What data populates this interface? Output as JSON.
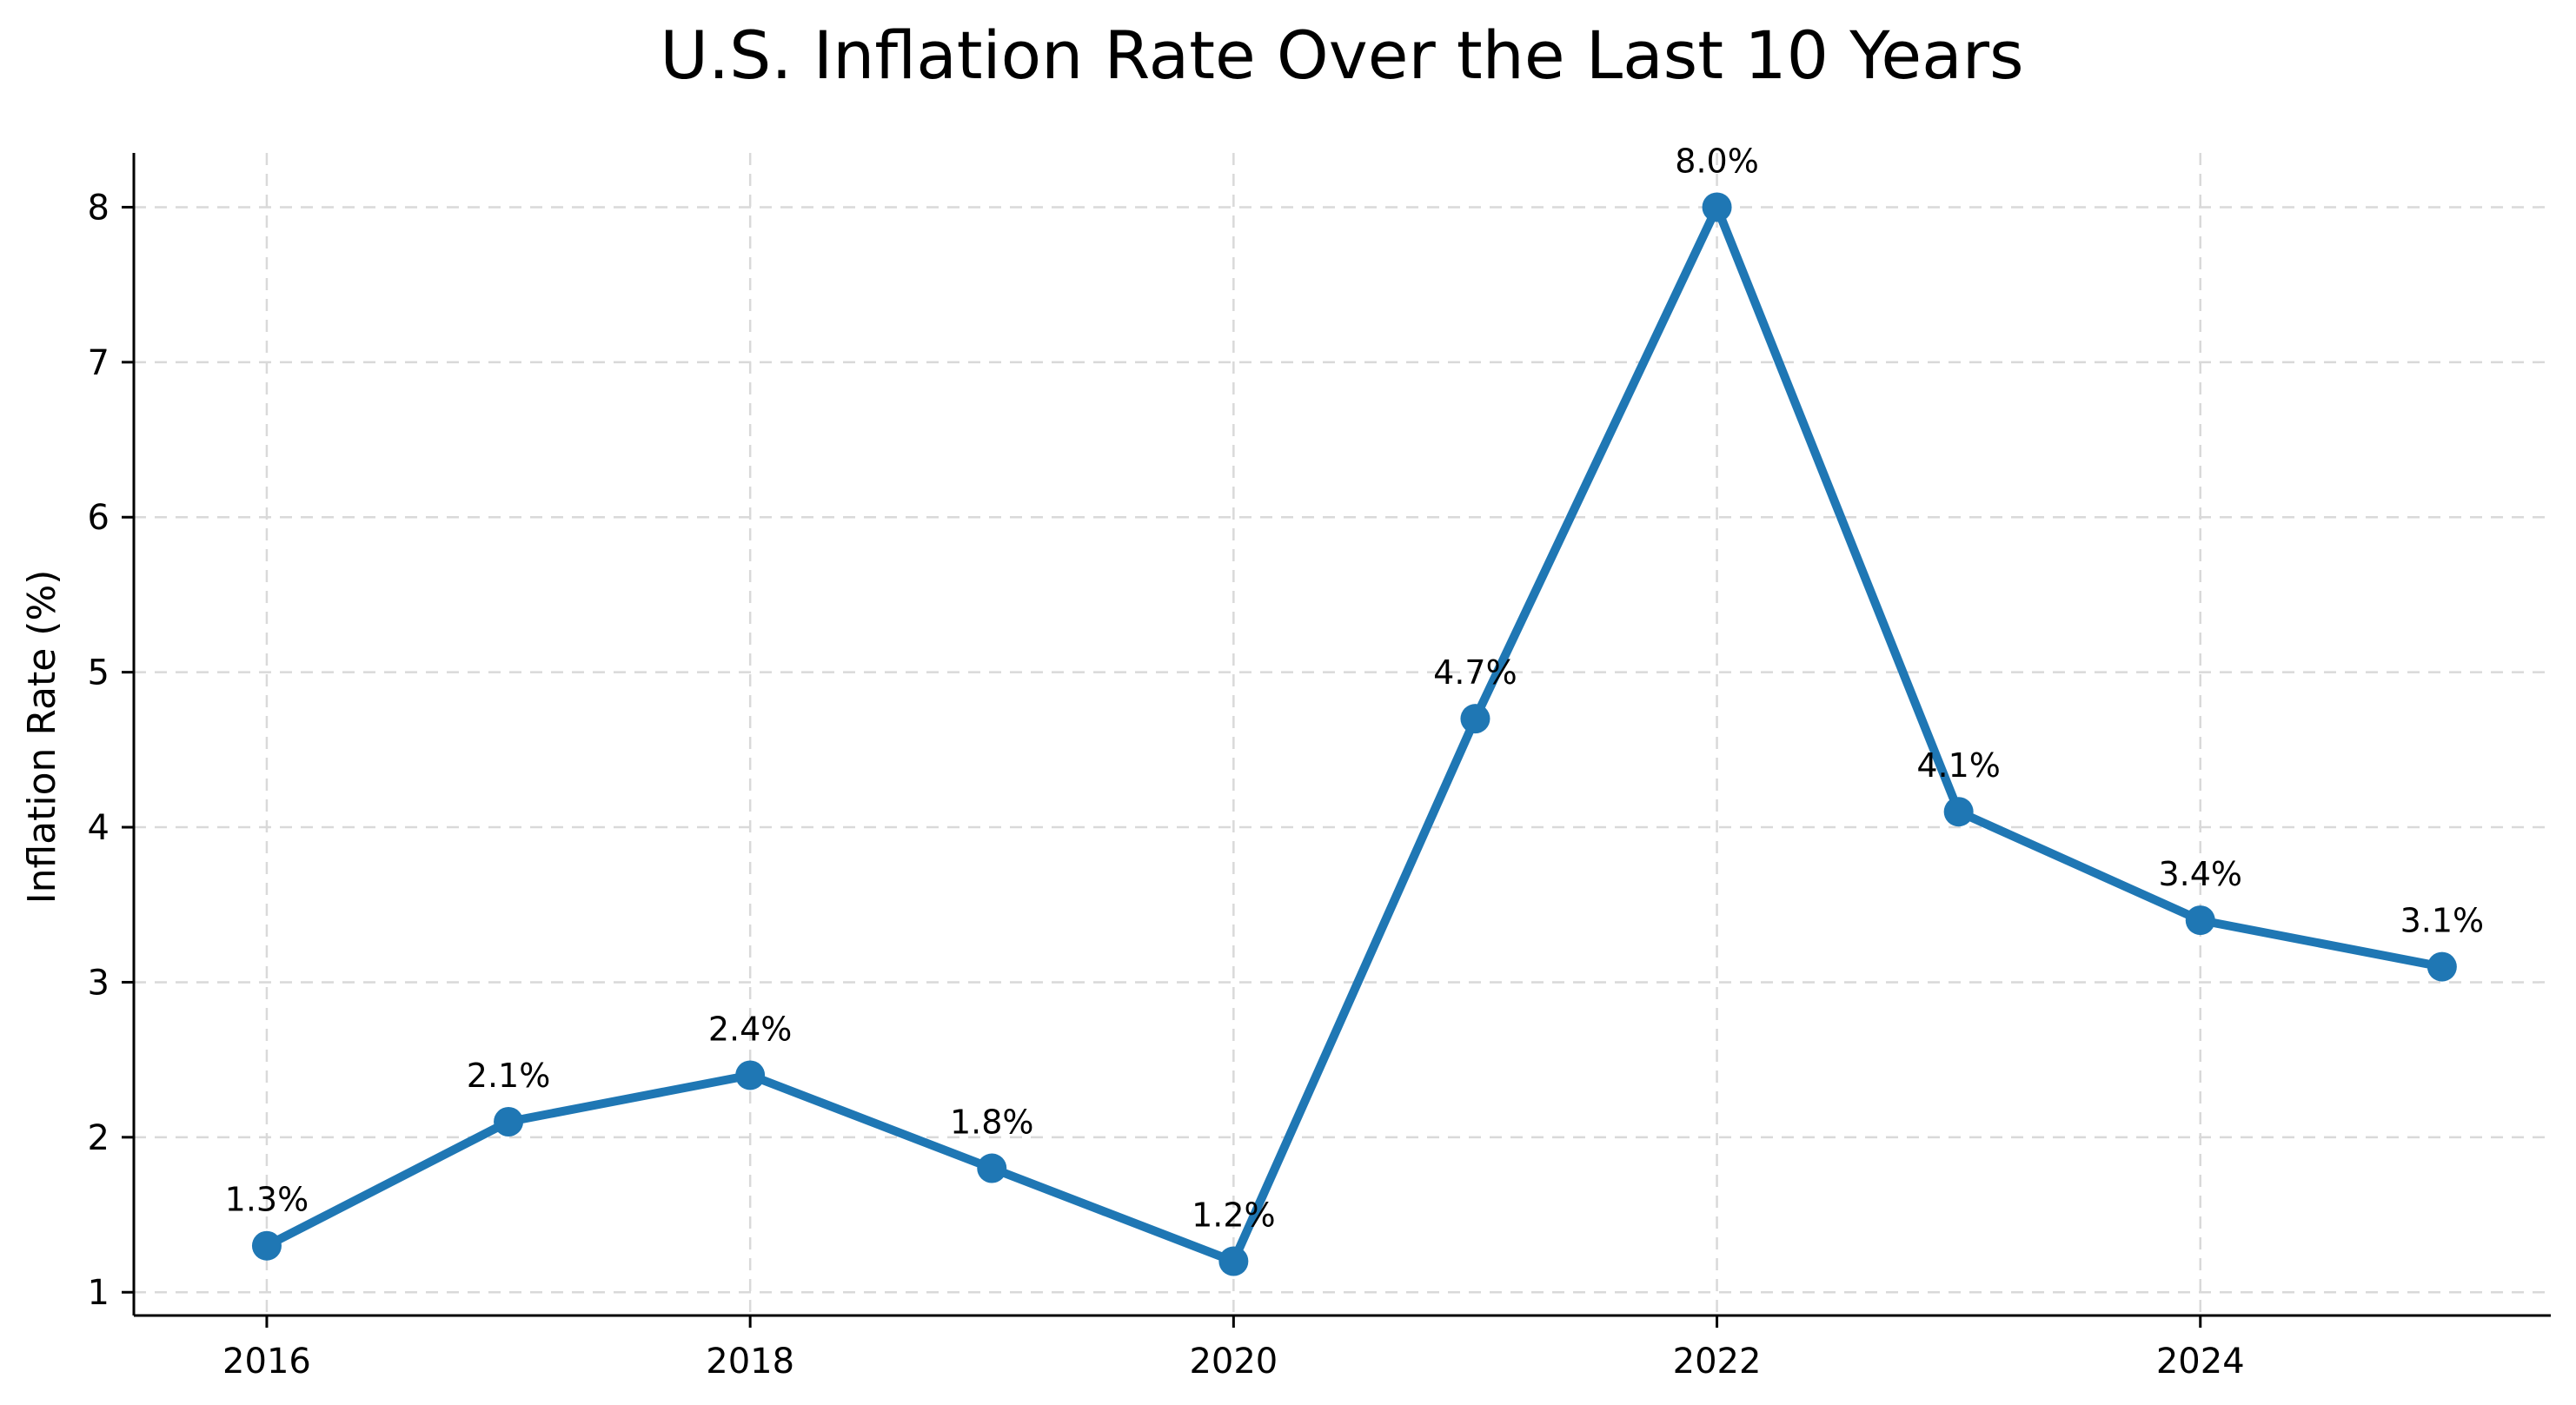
{
  "chart_data": {
    "type": "line",
    "title": "U.S. Inflation Rate Over the Last 10 Years",
    "xlabel": "",
    "ylabel": "Inflation Rate (%)",
    "x": [
      2016,
      2017,
      2018,
      2019,
      2020,
      2021,
      2022,
      2023,
      2024,
      2025
    ],
    "series": [
      {
        "values": [
          1.3,
          2.1,
          2.4,
          1.8,
          1.2,
          4.7,
          8.0,
          4.1,
          3.4,
          3.1
        ],
        "data_labels": [
          "1.3%",
          "2.1%",
          "2.4%",
          "1.8%",
          "1.2%",
          "4.7%",
          "8.0%",
          "4.1%",
          "3.4%",
          "3.1%"
        ],
        "color": "#1f77b4",
        "marker": "circle"
      }
    ],
    "xticks": [
      2016,
      2018,
      2020,
      2022,
      2024
    ],
    "xtick_labels": [
      "2016",
      "2018",
      "2020",
      "2022",
      "2024"
    ],
    "yticks": [
      1,
      2,
      3,
      4,
      5,
      6,
      7,
      8
    ],
    "ytick_labels": [
      "1",
      "2",
      "3",
      "4",
      "5",
      "6",
      "7",
      "8"
    ],
    "xlim": [
      2015.45,
      2025.45
    ],
    "ylim": [
      0.85,
      8.35
    ],
    "grid": true,
    "legend": "none"
  }
}
